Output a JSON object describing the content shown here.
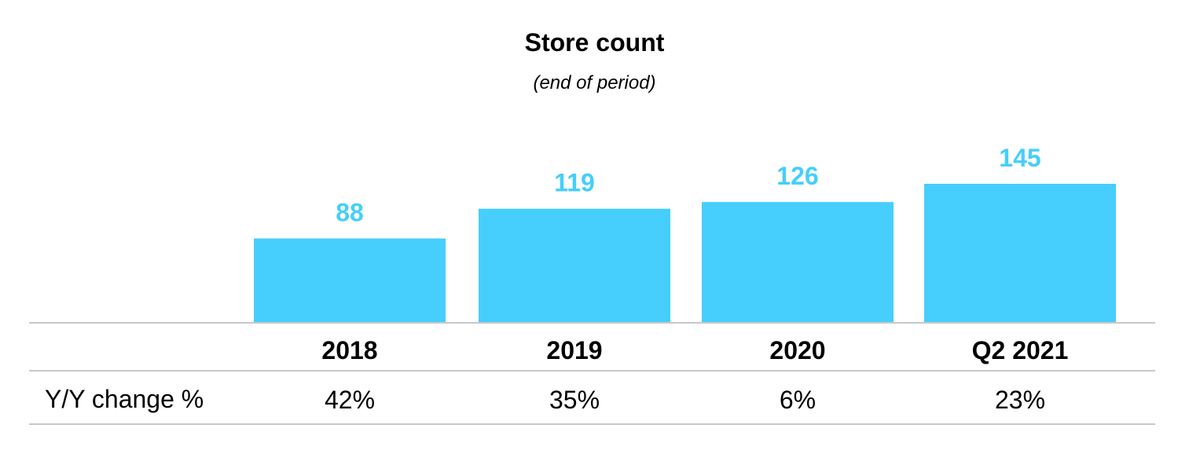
{
  "chart_data": {
    "type": "bar",
    "title": "Store count",
    "subtitle": "(end of period)",
    "categories": [
      "2018",
      "2019",
      "2020",
      "Q2 2021"
    ],
    "values": [
      88,
      119,
      126,
      145
    ],
    "data_labels": [
      "88",
      "119",
      "126",
      "145"
    ],
    "ylim": [
      0,
      145
    ],
    "bar_color": "#46cefc",
    "grid": false,
    "table": {
      "row_label": "Y/Y change %",
      "values": [
        "42%",
        "35%",
        "6%",
        "23%"
      ]
    }
  }
}
